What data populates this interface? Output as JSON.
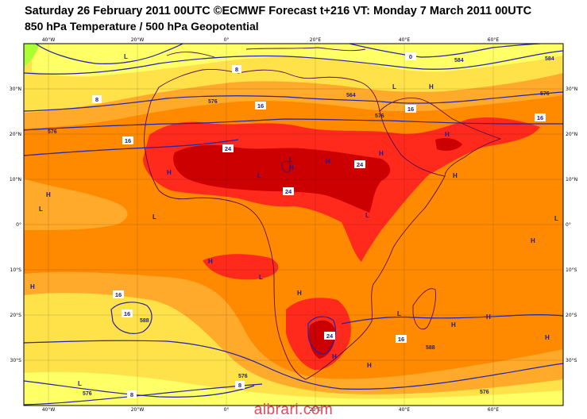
{
  "header": {
    "line1": "Saturday 26 February 2011 00UTC ©ECMWF Forecast t+216 VT: Monday 7 March 2011 00UTC",
    "line2": "850 hPa Temperature / 500 hPa Geopotential"
  },
  "axes": {
    "lon_top": [
      "40°W",
      "20°W",
      "0°",
      "20°E",
      "40°E",
      "60°E"
    ],
    "lon_bottom": [
      "40°W",
      "20°W",
      "0°",
      "20°E",
      "40°E",
      "60°E"
    ],
    "lat_left": [
      "30°N",
      "20°N",
      "10°N",
      "0°",
      "10°S",
      "20°S",
      "30°S"
    ],
    "lat_right": [
      "30°N",
      "20°N",
      "10°N",
      "0°",
      "10°S",
      "20°S",
      "30°S"
    ]
  },
  "temperature_labels": [
    "0",
    "8",
    "8",
    "16",
    "16",
    "16",
    "24",
    "24",
    "24",
    "16",
    "16",
    "8",
    "8",
    "24",
    "16",
    "16"
  ],
  "contour_labels": [
    "584",
    "576",
    "576",
    "564",
    "576",
    "588",
    "588",
    "576",
    "576",
    "584",
    "576",
    "576"
  ],
  "pressure_centres": [
    "L",
    "H",
    "L",
    "H",
    "L",
    "H",
    "L",
    "H",
    "L",
    "L",
    "H",
    "H",
    "L",
    "H",
    "H",
    "H",
    "L",
    "H",
    "H",
    "H",
    "H",
    "H",
    "L",
    "L",
    "H",
    "L",
    "H",
    "H"
  ],
  "colors": {
    "pale_yellow": "#ffff66",
    "yellow": "#ffe24a",
    "light_orange": "#ffaa2a",
    "orange": "#ff8a00",
    "red": "#ff2a1c",
    "dark_red": "#cc0000",
    "green_edge": "#aaff33",
    "contour": "#2222aa",
    "coast": "#5a0a4a"
  },
  "watermark": "albrari.com"
}
